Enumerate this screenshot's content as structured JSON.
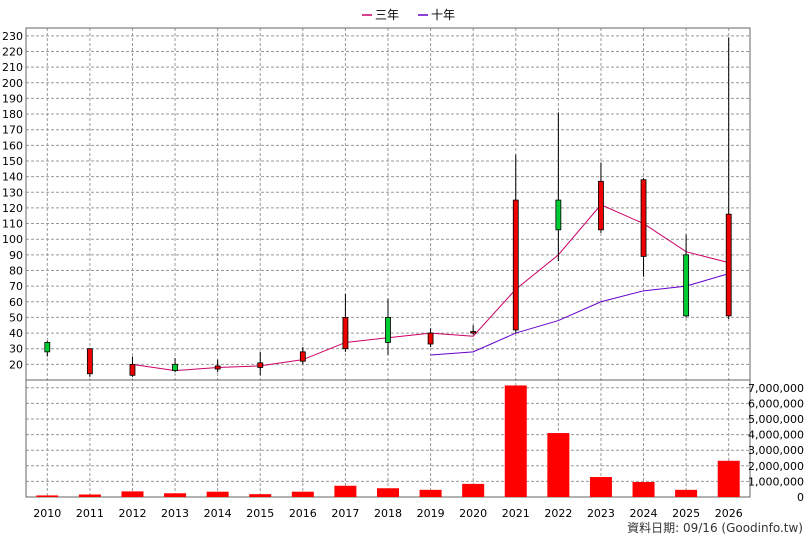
{
  "chart_data": {
    "type": "candlestick",
    "legend": [
      {
        "name": "三年",
        "color": "#cc0066"
      },
      {
        "name": "十年",
        "color": "#6600cc"
      }
    ],
    "legend_position": "top-center",
    "grid": true,
    "x": [
      "2010",
      "2011",
      "2012",
      "2013",
      "2014",
      "2015",
      "2016",
      "2017",
      "2018",
      "2019",
      "2020",
      "2021",
      "2022",
      "2023",
      "2024",
      "2025",
      "2026"
    ],
    "price_axis": {
      "ylim": [
        10,
        235
      ],
      "ticks": [
        "20",
        "30",
        "40",
        "50",
        "60",
        "70",
        "80",
        "90",
        "100",
        "110",
        "120",
        "130",
        "140",
        "150",
        "160",
        "170",
        "180",
        "190",
        "200",
        "210",
        "220",
        "230"
      ]
    },
    "volume_axis": {
      "ylim": [
        0,
        7500000
      ],
      "ticks": [
        "0",
        "1,000,000",
        "2,000,000",
        "3,000,000",
        "4,000,000",
        "5,000,000",
        "6,000,000",
        "7,000,000"
      ]
    },
    "candles": [
      {
        "x": "2010",
        "open": 28,
        "close": 34,
        "high": 35,
        "low": 25
      },
      {
        "x": "2011",
        "open": 30,
        "close": 14,
        "high": 30,
        "low": 12
      },
      {
        "x": "2012",
        "open": 20,
        "close": 13,
        "high": 25,
        "low": 12
      },
      {
        "x": "2013",
        "open": 16,
        "close": 20,
        "high": 24,
        "low": 15
      },
      {
        "x": "2014",
        "open": 19,
        "close": 17,
        "high": 23,
        "low": 15
      },
      {
        "x": "2015",
        "open": 21,
        "close": 18,
        "high": 28,
        "low": 13
      },
      {
        "x": "2016",
        "open": 28,
        "close": 22,
        "high": 31,
        "low": 20
      },
      {
        "x": "2017",
        "open": 50,
        "close": 30,
        "high": 65,
        "low": 28
      },
      {
        "x": "2018",
        "open": 34,
        "close": 50,
        "high": 62,
        "low": 26
      },
      {
        "x": "2019",
        "open": 40,
        "close": 33,
        "high": 43,
        "low": 31
      },
      {
        "x": "2020",
        "open": 41,
        "close": 40,
        "high": 45,
        "low": 39
      },
      {
        "x": "2021",
        "open": 125,
        "close": 42,
        "high": 154,
        "low": 40
      },
      {
        "x": "2022",
        "open": 106,
        "close": 125,
        "high": 181,
        "low": 86
      },
      {
        "x": "2023",
        "open": 137,
        "close": 106,
        "high": 149,
        "low": 104
      },
      {
        "x": "2024",
        "open": 138,
        "close": 89,
        "high": 139,
        "low": 76
      },
      {
        "x": "2025",
        "open": 51,
        "close": 90,
        "high": 103,
        "low": 50
      },
      {
        "x": "2026",
        "open": 116,
        "close": 51,
        "high": 229,
        "low": 49
      }
    ],
    "series": [
      {
        "name": "三年",
        "x": [
          "2012",
          "2013",
          "2014",
          "2015",
          "2016",
          "2017",
          "2018",
          "2019",
          "2020",
          "2021",
          "2022",
          "2023",
          "2024",
          "2025",
          "2026"
        ],
        "values": [
          20,
          16,
          18,
          19,
          23,
          34,
          37,
          40,
          38,
          68,
          90,
          122,
          110,
          92,
          85
        ]
      },
      {
        "name": "十年",
        "x": [
          "2019",
          "2020",
          "2021",
          "2022",
          "2023",
          "2024",
          "2025",
          "2026"
        ],
        "values": [
          26,
          28,
          40,
          48,
          60,
          67,
          70,
          78
        ]
      }
    ],
    "volume": [
      100000,
      160000,
      360000,
      240000,
      340000,
      180000,
      340000,
      720000,
      560000,
      460000,
      840000,
      7150000,
      4100000,
      1280000,
      960000,
      460000,
      2320000
    ]
  },
  "footer": "資料日期: 09/16  (Goodinfo.tw)"
}
